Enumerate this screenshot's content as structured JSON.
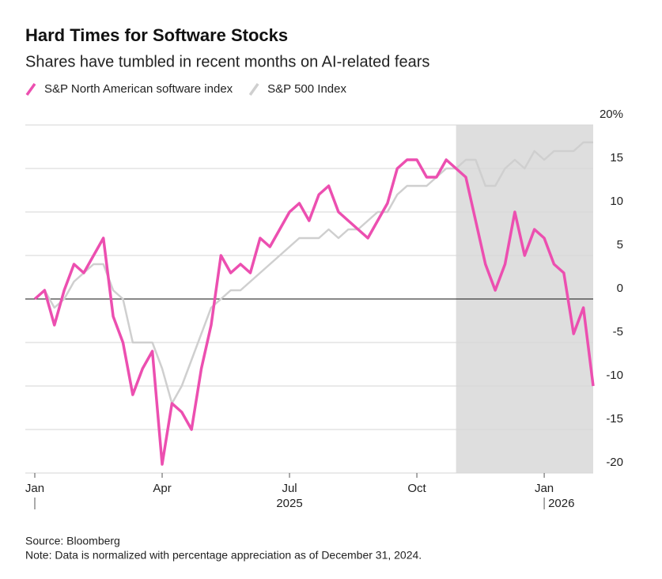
{
  "chart_data": {
    "type": "line",
    "title": "Hard Times for Software Stocks",
    "subtitle": "Shares have tumbled in recent months on AI-related fears",
    "categories": [
      "Jan",
      null,
      null,
      null,
      null,
      null,
      null,
      null,
      null,
      null,
      null,
      null,
      null,
      "Apr",
      null,
      null,
      null,
      null,
      null,
      null,
      null,
      null,
      null,
      null,
      null,
      null,
      "Jul",
      null,
      null,
      null,
      null,
      null,
      null,
      null,
      null,
      null,
      null,
      null,
      null,
      "Oct",
      null,
      null,
      null,
      null,
      null,
      null,
      null,
      null,
      null,
      null,
      null,
      null,
      "Jan",
      null,
      null,
      null,
      null,
      null
    ],
    "year_labels": [
      "2025",
      "2026"
    ],
    "series": [
      {
        "name": "S&P North American software index",
        "color": "#ec4fb0",
        "values": [
          0,
          1,
          -3,
          1,
          4,
          3,
          5,
          7,
          -2,
          -5,
          -11,
          -8,
          -6,
          -19,
          -12,
          -13,
          -15,
          -8,
          -3,
          5,
          3,
          4,
          3,
          7,
          6,
          8,
          10,
          11,
          9,
          12,
          13,
          10,
          9,
          8,
          7,
          9,
          11,
          15,
          16,
          16,
          14,
          14,
          16,
          15,
          14,
          9,
          4,
          1,
          4,
          10,
          5,
          8,
          7,
          4,
          3,
          -4,
          -1,
          -10
        ]
      },
      {
        "name": "S&P 500 Index",
        "color": "#cfcfcf",
        "values": [
          0,
          1,
          -1,
          0,
          2,
          3,
          4,
          4,
          1,
          0,
          -5,
          -5,
          -5,
          -8,
          -12,
          -10,
          -7,
          -4,
          -1,
          0,
          1,
          1,
          2,
          3,
          4,
          5,
          6,
          7,
          7,
          7,
          8,
          7,
          8,
          8,
          9,
          10,
          10,
          12,
          13,
          13,
          13,
          14,
          15,
          15,
          16,
          16,
          13,
          13,
          15,
          16,
          15,
          17,
          16,
          17,
          17,
          17,
          18,
          18
        ]
      }
    ],
    "shaded_range": [
      43,
      57
    ],
    "ylim": [
      -20,
      20
    ],
    "yticks": [
      -20,
      -15,
      -10,
      -5,
      0,
      5,
      10,
      15,
      {
        "value": 20,
        "label": "20%"
      }
    ],
    "grid": true,
    "source": "Source: Bloomberg",
    "note": "Note: Data is normalized with percentage appreciation as of December 31, 2024."
  }
}
